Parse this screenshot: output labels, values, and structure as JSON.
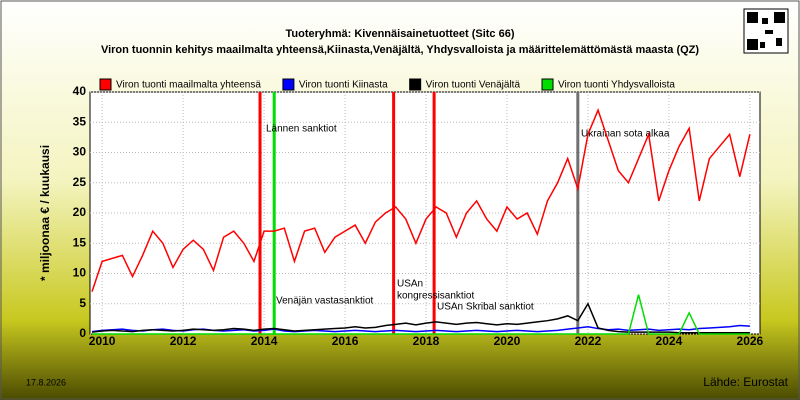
{
  "chart_data": {
    "type": "line",
    "title": "Tuoteryhmä: Kivennäisainetuotteet (Sitc 66)",
    "subtitle": "Viron tuonnin kehitys maailmalta yhteensä,Kiinasta,Venäjältä, Yhdysvalloista ja määrittelemättömästä maasta (QZ)",
    "y_label": "* miljoonaa € / kuukausi",
    "date": "17.8.2026",
    "source": "Lähde: Eurostat",
    "xlim": [
      2009.7,
      2026.25
    ],
    "ylim": [
      0,
      40
    ],
    "xticks": [
      2010,
      2012,
      2014,
      2016,
      2018,
      2020,
      2022,
      2024,
      2026
    ],
    "yticks": [
      0,
      5,
      10,
      15,
      20,
      25,
      30,
      35,
      40
    ],
    "grid": true,
    "x": [
      2009.75,
      2010,
      2010.25,
      2010.5,
      2010.75,
      2011,
      2011.25,
      2011.5,
      2011.75,
      2012,
      2012.25,
      2012.5,
      2012.75,
      2013,
      2013.25,
      2013.5,
      2013.75,
      2014,
      2014.25,
      2014.5,
      2014.75,
      2015,
      2015.25,
      2015.5,
      2015.75,
      2016,
      2016.25,
      2016.5,
      2016.75,
      2017,
      2017.25,
      2017.5,
      2017.75,
      2018,
      2018.25,
      2018.5,
      2018.75,
      2019,
      2019.25,
      2019.5,
      2019.75,
      2020,
      2020.25,
      2020.5,
      2020.75,
      2021,
      2021.25,
      2021.5,
      2021.75,
      2022,
      2022.25,
      2022.5,
      2022.75,
      2023,
      2023.25,
      2023.5,
      2023.75,
      2024,
      2024.25,
      2024.5,
      2024.75,
      2025,
      2025.25,
      2025.5,
      2025.75,
      2026
    ],
    "series": [
      {
        "name": "Viron tuonti maailmalta yhteensä",
        "color": "#ff0000",
        "values": [
          7,
          12,
          12.5,
          13,
          9.5,
          13,
          17,
          15,
          11,
          14,
          15.5,
          14,
          10.5,
          16,
          17,
          15,
          12,
          17,
          17,
          17.5,
          12,
          17,
          17.5,
          13.5,
          16,
          17,
          18,
          15,
          18.5,
          20,
          21,
          19,
          15,
          19,
          21,
          20,
          16,
          20,
          22,
          19,
          17,
          21,
          19,
          20,
          16.5,
          22,
          25,
          29,
          24,
          33,
          37,
          32,
          27,
          25,
          29,
          33,
          22,
          27,
          31,
          34,
          22,
          29,
          31,
          33,
          26,
          33
        ]
      },
      {
        "name": "Viron tuonti Kiinasta",
        "color": "#0000ff",
        "values": [
          0.4,
          0.6,
          0.7,
          0.8,
          0.6,
          0.5,
          0.7,
          0.8,
          0.6,
          0.5,
          0.7,
          0.8,
          0.6,
          0.5,
          0.6,
          0.7,
          0.5,
          0.6,
          0.8,
          0.5,
          0.4,
          0.5,
          0.6,
          0.5,
          0.4,
          0.5,
          0.6,
          0.5,
          0.4,
          0.5,
          0.6,
          0.5,
          0.4,
          0.5,
          0.6,
          0.5,
          0.4,
          0.5,
          0.6,
          0.5,
          0.4,
          0.5,
          0.6,
          0.5,
          0.4,
          0.5,
          0.6,
          0.8,
          1.0,
          1.2,
          0.9,
          0.7,
          0.8,
          0.6,
          0.7,
          0.8,
          0.6,
          0.7,
          0.8,
          0.7,
          0.9,
          1.0,
          1.1,
          1.2,
          1.4,
          1.3
        ]
      },
      {
        "name": "Viron tuonti Venäjältä",
        "color": "#000000",
        "values": [
          0.3,
          0.5,
          0.6,
          0.5,
          0.4,
          0.6,
          0.7,
          0.6,
          0.5,
          0.6,
          0.8,
          0.7,
          0.6,
          0.7,
          0.9,
          0.8,
          0.6,
          0.8,
          0.9,
          0.7,
          0.5,
          0.6,
          0.7,
          0.8,
          0.9,
          1.0,
          1.2,
          1.0,
          1.1,
          1.4,
          1.6,
          1.8,
          1.5,
          1.8,
          2.0,
          1.8,
          1.6,
          1.8,
          1.9,
          1.7,
          1.5,
          1.7,
          1.6,
          1.8,
          2.0,
          2.2,
          2.5,
          3.0,
          2.2,
          5.0,
          1.0,
          0.6,
          0.4,
          0.3,
          0.3,
          0.3,
          0.3,
          0.3,
          0.2,
          0.2,
          0.2,
          0.2,
          0.2,
          0.2,
          0.2,
          0.2
        ]
      },
      {
        "name": "Viron tuonti Yhdysvalloista",
        "color": "#00dd00",
        "values": [
          0,
          0,
          0,
          0,
          0,
          0,
          0,
          0,
          0,
          0,
          0,
          0,
          0,
          0,
          0,
          0,
          0,
          0,
          0,
          0,
          0,
          0,
          0,
          0,
          0,
          0,
          0,
          0,
          0,
          0,
          0,
          0,
          0,
          0,
          0,
          0,
          0,
          0,
          0,
          0,
          0,
          0,
          0,
          0,
          0,
          0,
          0,
          0,
          0,
          0,
          0,
          0,
          0,
          0,
          6.5,
          0,
          0,
          0,
          0,
          3.5,
          0,
          0,
          0,
          0,
          0,
          0
        ]
      }
    ],
    "events": [
      {
        "x": 2013.9,
        "color": "#ff0000"
      },
      {
        "x": 2014.25,
        "color": "#00dd00"
      },
      {
        "x": 2017.2,
        "color": "#ff0000"
      },
      {
        "x": 2018.2,
        "color": "#ff0000"
      },
      {
        "x": 2021.75,
        "color": "#707070"
      }
    ],
    "annotations": [
      "Lännen sanktiot",
      "Venäjän vastasanktiot",
      "USAn",
      "kongressisanktiot",
      "USAn Skribal sanktiot",
      "Ukrainan sota alkaa"
    ]
  }
}
